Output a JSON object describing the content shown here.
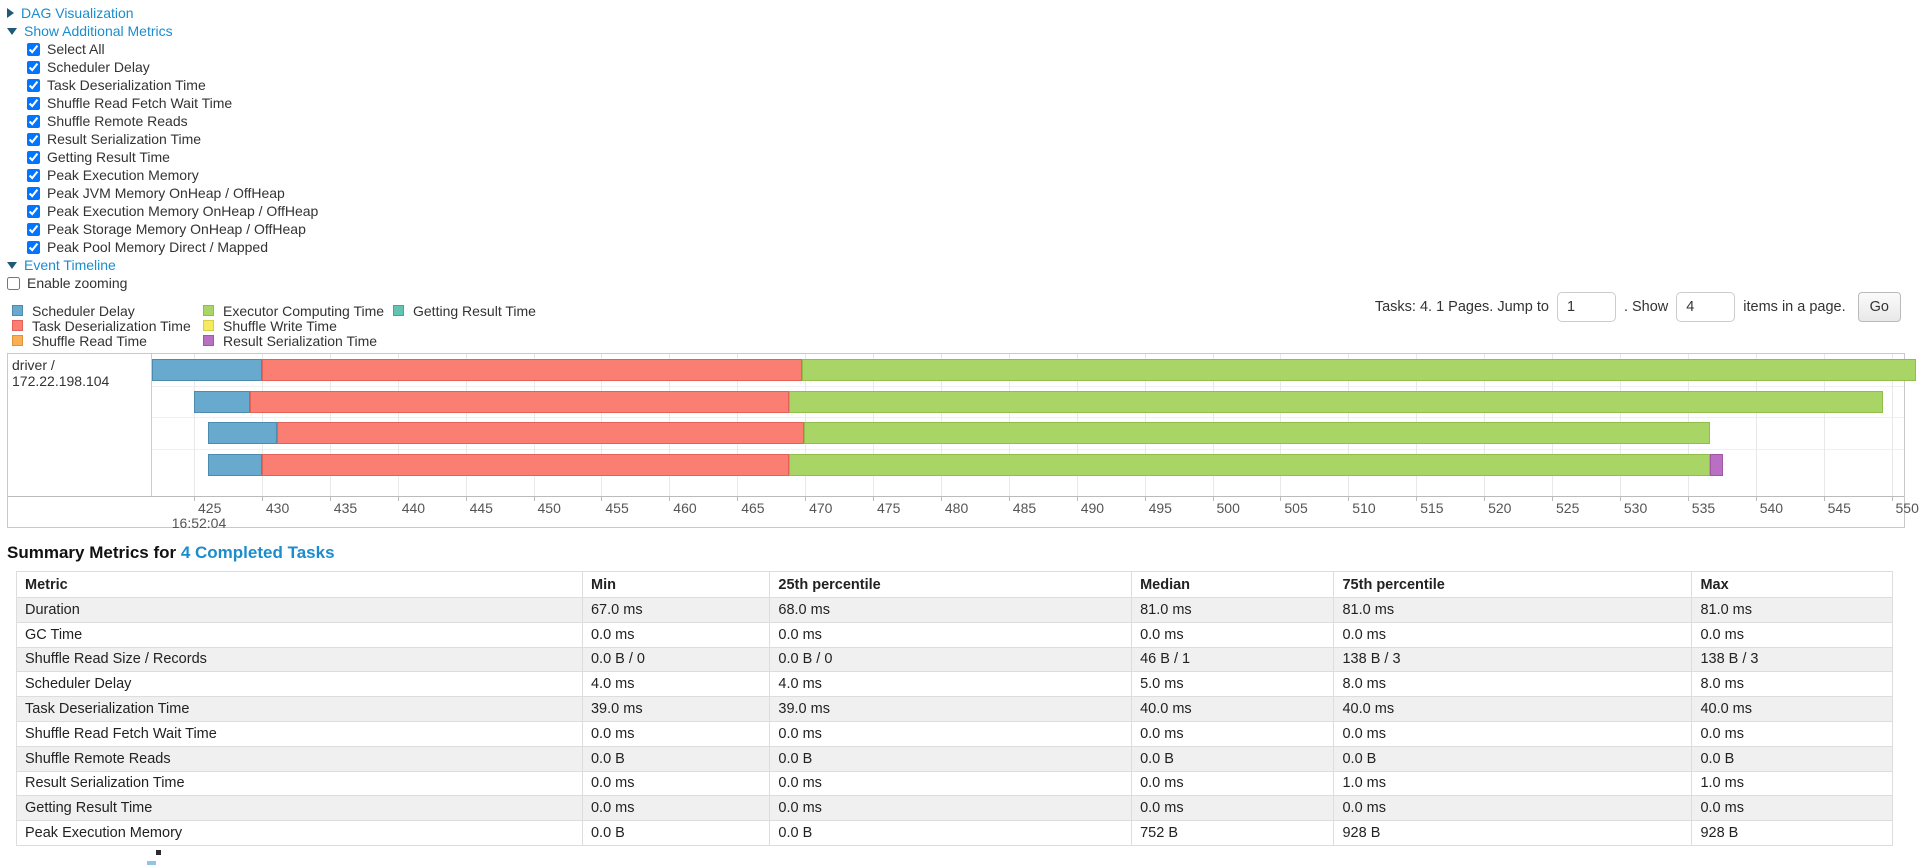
{
  "colors": {
    "link": "#1b8ccd",
    "arrow": "#1d5a78",
    "scheduler_delay": {
      "fill": "#68a9ce",
      "border": "#4d8ab0"
    },
    "task_deserialization": {
      "fill": "#fb7e72",
      "border": "#e2625a"
    },
    "shuffle_read": {
      "fill": "#fcae55",
      "border": "#e09438"
    },
    "executor_computing": {
      "fill": "#a8d566",
      "border": "#8fbf48"
    },
    "shuffle_write": {
      "fill": "#f4eb60",
      "border": "#d9ce3f"
    },
    "result_serialization": {
      "fill": "#ba70c2",
      "border": "#a156a8"
    },
    "getting_result": {
      "fill": "#61c3b0",
      "border": "#46a893"
    }
  },
  "toggles": {
    "dag_visualization": "DAG Visualization",
    "show_additional_metrics": "Show Additional Metrics",
    "event_timeline": "Event Timeline"
  },
  "metrics_checkboxes": [
    {
      "label": "Select All",
      "checked": true
    },
    {
      "label": "Scheduler Delay",
      "checked": true
    },
    {
      "label": "Task Deserialization Time",
      "checked": true
    },
    {
      "label": "Shuffle Read Fetch Wait Time",
      "checked": true
    },
    {
      "label": "Shuffle Remote Reads",
      "checked": true
    },
    {
      "label": "Result Serialization Time",
      "checked": true
    },
    {
      "label": "Getting Result Time",
      "checked": true
    },
    {
      "label": "Peak Execution Memory",
      "checked": true
    },
    {
      "label": "Peak JVM Memory OnHeap / OffHeap",
      "checked": true
    },
    {
      "label": "Peak Execution Memory OnHeap / OffHeap",
      "checked": true
    },
    {
      "label": "Peak Storage Memory OnHeap / OffHeap",
      "checked": true
    },
    {
      "label": "Peak Pool Memory Direct / Mapped",
      "checked": true
    }
  ],
  "enable_zooming": {
    "label": "Enable zooming",
    "checked": false
  },
  "legend": {
    "columns": [
      [
        {
          "label": "Scheduler Delay",
          "color_key": "scheduler_delay"
        },
        {
          "label": "Task Deserialization Time",
          "color_key": "task_deserialization"
        },
        {
          "label": "Shuffle Read Time",
          "color_key": "shuffle_read"
        }
      ],
      [
        {
          "label": "Executor Computing Time",
          "color_key": "executor_computing"
        },
        {
          "label": "Shuffle Write Time",
          "color_key": "shuffle_write"
        },
        {
          "label": "Result Serialization Time",
          "color_key": "result_serialization"
        }
      ],
      [
        {
          "label": "Getting Result Time",
          "color_key": "getting_result"
        }
      ]
    ]
  },
  "pagination": {
    "tasks_label": "Tasks: 4. 1 Pages. Jump to",
    "jump_value": "1",
    "show_label": ". Show",
    "show_value": "4",
    "items_label": "items in a page.",
    "go_label": "Go"
  },
  "chart_data": {
    "type": "timeline",
    "group_label": "driver / 172.22.198.104",
    "x_axis": {
      "tick_start": 425,
      "tick_end": 550,
      "tick_step": 5,
      "unit": "ms",
      "base_time_label": "16:52:04"
    },
    "tasks": [
      {
        "segments": [
          {
            "kind": "scheduler_delay",
            "start": 421.9,
            "end": 430.0
          },
          {
            "kind": "task_deserialization",
            "start": 430.0,
            "end": 469.8
          },
          {
            "kind": "executor_computing",
            "start": 469.8,
            "end": 551.8
          }
        ]
      },
      {
        "segments": [
          {
            "kind": "scheduler_delay",
            "start": 425.0,
            "end": 429.1
          },
          {
            "kind": "task_deserialization",
            "start": 429.1,
            "end": 468.8
          },
          {
            "kind": "executor_computing",
            "start": 468.8,
            "end": 549.4
          }
        ]
      },
      {
        "segments": [
          {
            "kind": "scheduler_delay",
            "start": 426.0,
            "end": 431.1
          },
          {
            "kind": "task_deserialization",
            "start": 431.1,
            "end": 469.9
          },
          {
            "kind": "executor_computing",
            "start": 469.9,
            "end": 536.6
          }
        ]
      },
      {
        "segments": [
          {
            "kind": "scheduler_delay",
            "start": 426.0,
            "end": 430.0
          },
          {
            "kind": "task_deserialization",
            "start": 430.0,
            "end": 468.8
          },
          {
            "kind": "executor_computing",
            "start": 468.8,
            "end": 536.6
          },
          {
            "kind": "result_serialization",
            "start": 536.6,
            "end": 537.6
          }
        ]
      }
    ]
  },
  "summary": {
    "title_prefix": "Summary Metrics for ",
    "title_link": "4 Completed Tasks",
    "headers": [
      "Metric",
      "Min",
      "25th percentile",
      "Median",
      "75th percentile",
      "Max"
    ],
    "rows": [
      [
        "Duration",
        "67.0 ms",
        "68.0 ms",
        "81.0 ms",
        "81.0 ms",
        "81.0 ms"
      ],
      [
        "GC Time",
        "0.0 ms",
        "0.0 ms",
        "0.0 ms",
        "0.0 ms",
        "0.0 ms"
      ],
      [
        "Shuffle Read Size / Records",
        "0.0 B / 0",
        "0.0 B / 0",
        "46 B / 1",
        "138 B / 3",
        "138 B / 3"
      ],
      [
        "Scheduler Delay",
        "4.0 ms",
        "4.0 ms",
        "5.0 ms",
        "8.0 ms",
        "8.0 ms"
      ],
      [
        "Task Deserialization Time",
        "39.0 ms",
        "39.0 ms",
        "40.0 ms",
        "40.0 ms",
        "40.0 ms"
      ],
      [
        "Shuffle Read Fetch Wait Time",
        "0.0 ms",
        "0.0 ms",
        "0.0 ms",
        "0.0 ms",
        "0.0 ms"
      ],
      [
        "Shuffle Remote Reads",
        "0.0 B",
        "0.0 B",
        "0.0 B",
        "0.0 B",
        "0.0 B"
      ],
      [
        "Result Serialization Time",
        "0.0 ms",
        "0.0 ms",
        "0.0 ms",
        "1.0 ms",
        "1.0 ms"
      ],
      [
        "Getting Result Time",
        "0.0 ms",
        "0.0 ms",
        "0.0 ms",
        "0.0 ms",
        "0.0 ms"
      ],
      [
        "Peak Execution Memory",
        "0.0 B",
        "0.0 B",
        "752 B",
        "928 B",
        "928 B"
      ]
    ]
  }
}
